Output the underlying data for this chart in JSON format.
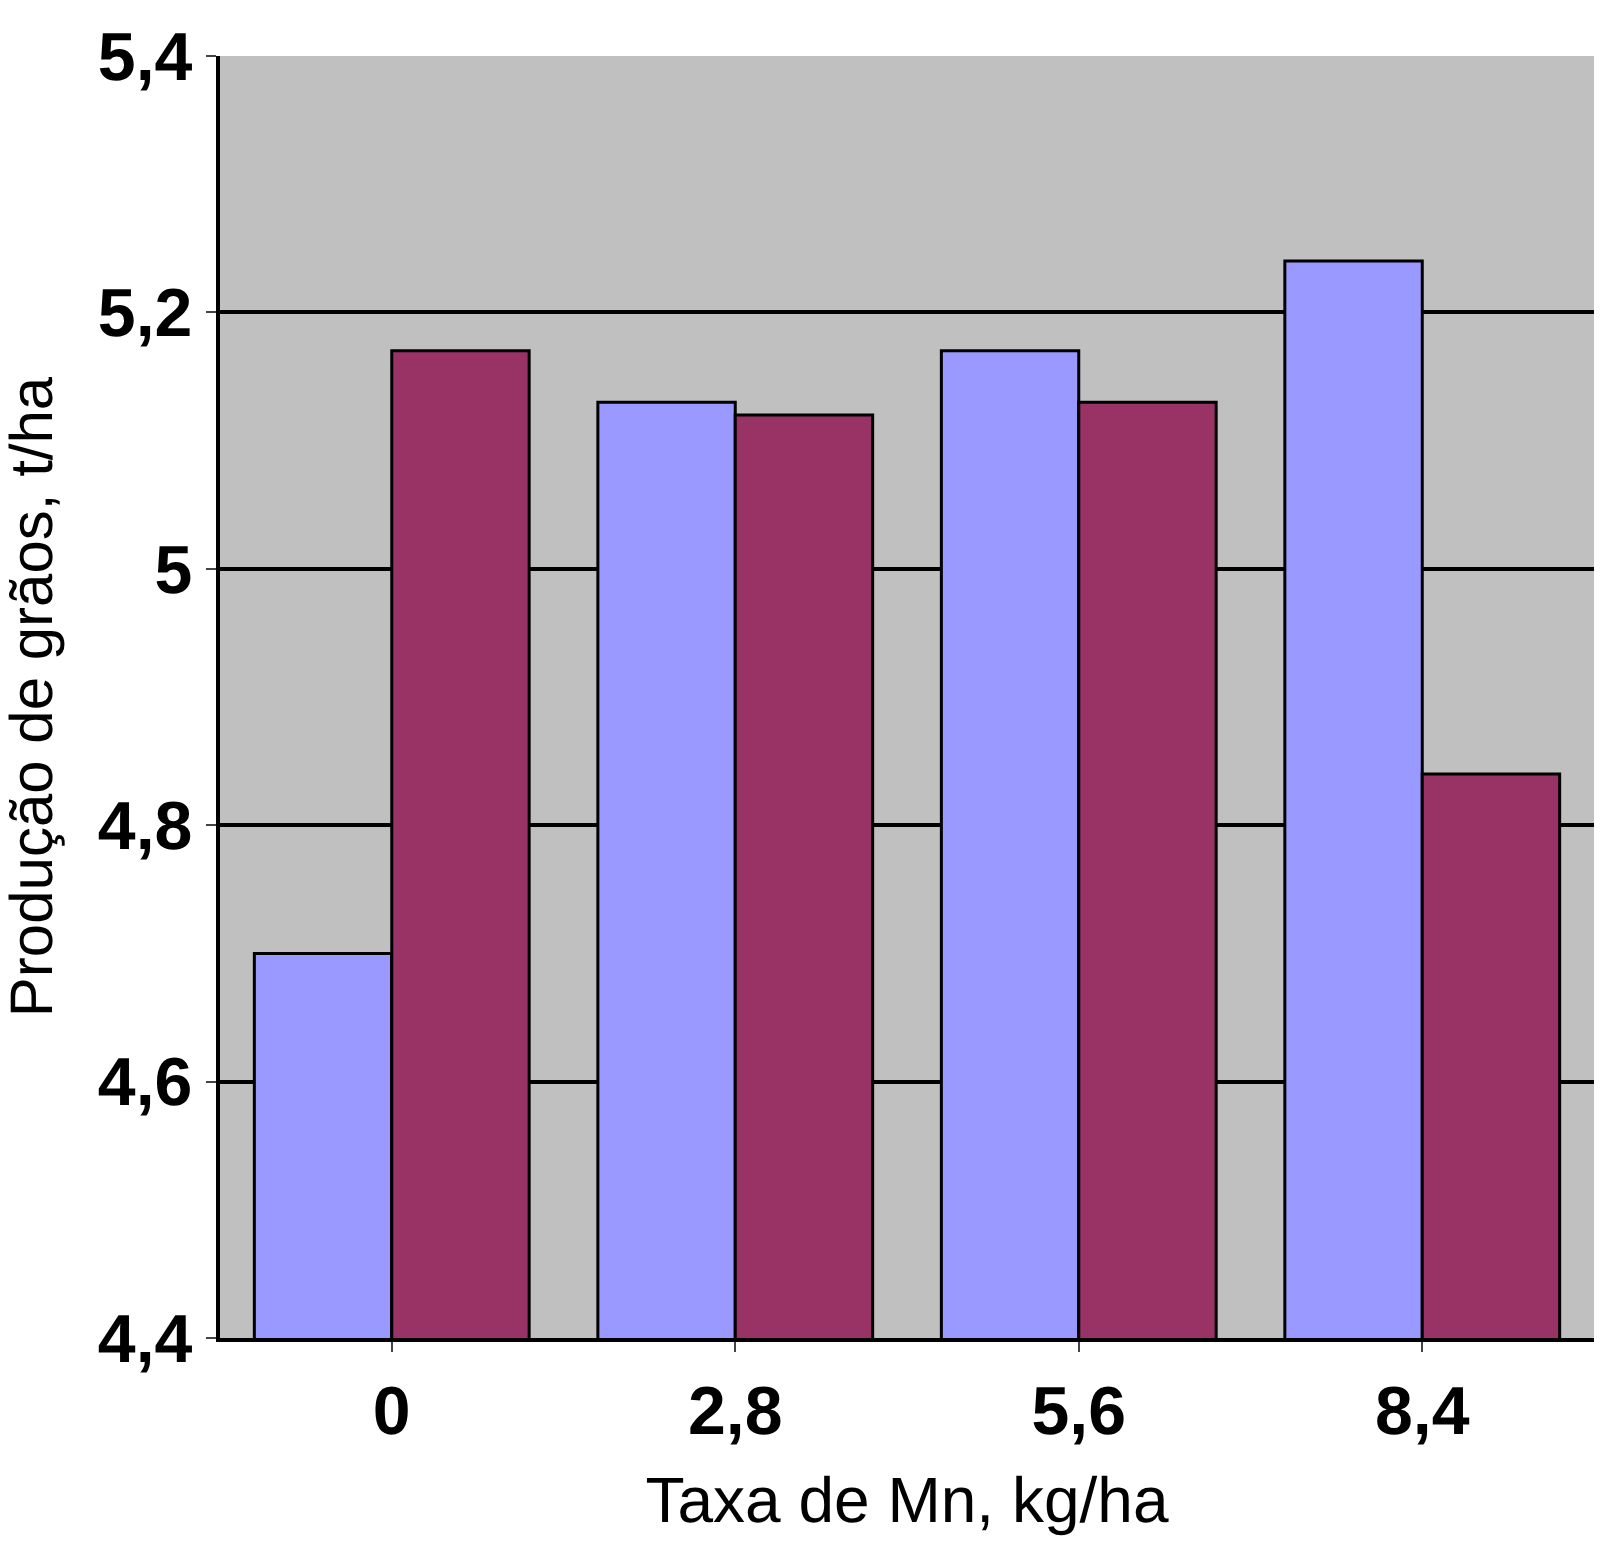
{
  "chart_data": {
    "type": "bar",
    "xlabel": "Taxa de Mn, kg/ha",
    "ylabel": "Produção de grãos, t/ha",
    "categories": [
      "0",
      "2,8",
      "5,6",
      "8,4"
    ],
    "series": [
      {
        "color": "#9999ff",
        "values": [
          4.7,
          5.13,
          5.17,
          5.24
        ]
      },
      {
        "color": "#993366",
        "values": [
          5.17,
          5.12,
          5.13,
          4.84
        ]
      }
    ],
    "ylim": [
      4.4,
      5.4
    ],
    "yticks": [
      {
        "value": 4.4,
        "label": "4,4"
      },
      {
        "value": 4.6,
        "label": "4,6"
      },
      {
        "value": 4.8,
        "label": "4,8"
      },
      {
        "value": 5,
        "label": "5"
      },
      {
        "value": 5.2,
        "label": "5,2"
      },
      {
        "value": 5.4,
        "label": "5,4"
      }
    ],
    "grid": "y"
  }
}
